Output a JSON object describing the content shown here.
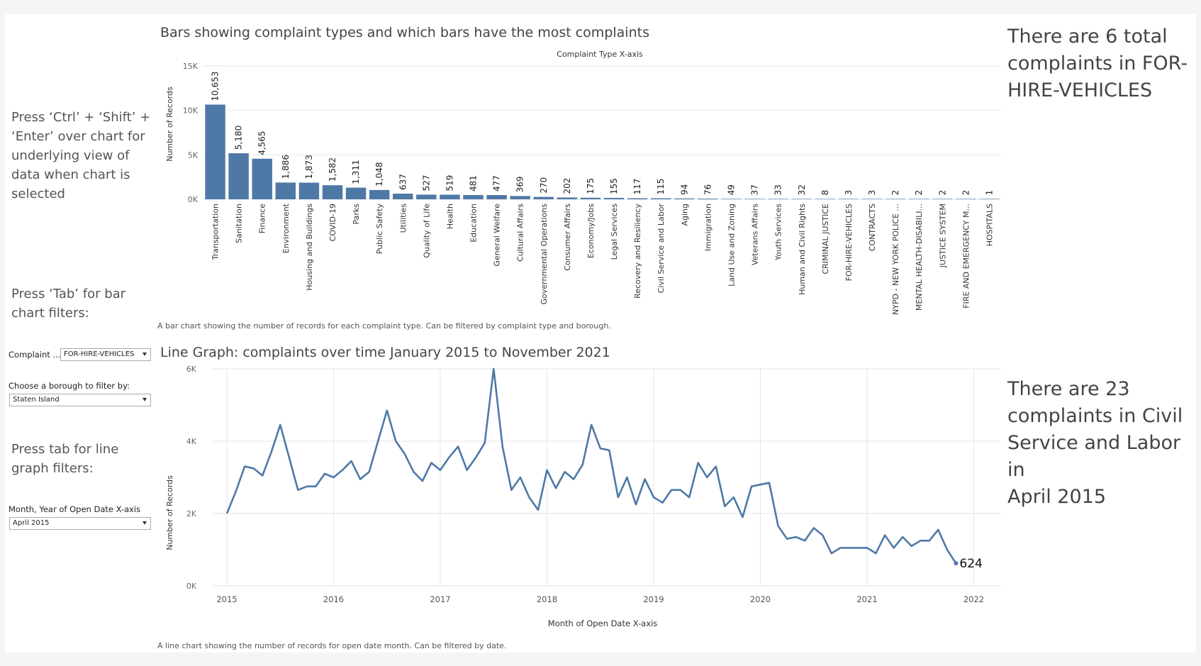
{
  "left_panel": {
    "underlying_note": [
      "Press ‘Ctrl’ + ‘Shift’ +",
      "‘Enter’ over chart for",
      "underlying view of",
      "data when chart is",
      "selected"
    ],
    "bar_filter_note": [
      "Press ‘Tab’ for bar",
      "chart filters:"
    ],
    "line_filter_note": [
      "Press tab for line",
      "graph filters:"
    ]
  },
  "filters": {
    "complaint_label": "Complaint ...",
    "complaint_value": "FOR-HIRE-VEHICLES",
    "borough_label": "Choose a borough to filter by:",
    "borough_value": "Staten Island",
    "month_label": "Month, Year of Open Date X-axis",
    "month_value": "April 2015"
  },
  "right_panel": {
    "bar_summary": [
      "There are 6 total",
      "complaints in FOR-",
      "HIRE-VEHICLES"
    ],
    "line_summary": [
      "There are 23",
      "complaints in Civil",
      "Service and Labor in",
      "April 2015"
    ]
  },
  "bar_section": {
    "title": "Bars showing complaint types and which bars have the most complaints",
    "caption": "A bar chart showing the number of records for each complaint type. Can be filtered by complaint type and borough."
  },
  "line_section": {
    "title": "Line Graph: complaints over time January 2015 to November 2021",
    "caption": "A line chart showing the number of records for open date month. Can be filtered by date."
  },
  "colors": {
    "bar": "#4e79a7",
    "line": "#4e79a7",
    "grid": "#e6e6e6"
  },
  "chart_data": [
    {
      "type": "bar",
      "title": "Complaint Type X-axis",
      "xlabel": "",
      "ylabel": "Number of Records",
      "ylim": [
        0,
        15000
      ],
      "yticks": [
        "0K",
        "5K",
        "10K",
        "15K"
      ],
      "categories": [
        "Transportation",
        "Sanitation",
        "Finance",
        "Environment",
        "Housing and Buildings",
        "COVID-19",
        "Parks",
        "Public Safety",
        "Utilities",
        "Quality of Life",
        "Health",
        "Education",
        "General Welfare",
        "Cultural Affairs",
        "Governmental Operations",
        "Consumer Affairs",
        "Economy/Jobs",
        "Legal Services",
        "Recovery and Resiliency",
        "Civil Service and Labor",
        "Aging",
        "Immigration",
        "Land Use and Zoning",
        "Veterans Affairs",
        "Youth Services",
        "Human and Civil Rights",
        "CRIMINAL JUSTICE",
        "FOR-HIRE-VEHICLES",
        "CONTRACTS",
        "NYPD - NEW YORK POLICE ...",
        "MENTAL HEALTH-DISABILI...",
        "JUSTICE SYSTEM",
        "FIRE AND EMERGENCY M...",
        "HOSPITALS"
      ],
      "values": [
        10653,
        5180,
        4565,
        1886,
        1873,
        1582,
        1311,
        1048,
        637,
        527,
        519,
        481,
        477,
        369,
        270,
        202,
        175,
        155,
        117,
        115,
        94,
        76,
        49,
        37,
        33,
        32,
        8,
        3,
        3,
        2,
        2,
        2,
        2,
        1
      ],
      "value_labels": [
        "10,653",
        "5,180",
        "4,565",
        "1,886",
        "1,873",
        "1,582",
        "1,311",
        "1,048",
        "637",
        "527",
        "519",
        "481",
        "477",
        "369",
        "270",
        "202",
        "175",
        "155",
        "117",
        "115",
        "94",
        "76",
        "49",
        "37",
        "33",
        "32",
        "8",
        "3",
        "3",
        "2",
        "2",
        "2",
        "2",
        "1"
      ]
    },
    {
      "type": "line",
      "xlabel": "Month of Open Date X-axis",
      "ylabel": "Number of Records",
      "xlim": [
        "2015-01",
        "2022-01"
      ],
      "ylim": [
        0,
        6000
      ],
      "yticks": [
        "0K",
        "2K",
        "4K",
        "6K"
      ],
      "xticks": [
        "2015",
        "2016",
        "2017",
        "2018",
        "2019",
        "2020",
        "2021",
        "2022"
      ],
      "x": [
        "2015-01",
        "2015-02",
        "2015-03",
        "2015-04",
        "2015-05",
        "2015-06",
        "2015-07",
        "2015-08",
        "2015-09",
        "2015-10",
        "2015-11",
        "2015-12",
        "2016-01",
        "2016-02",
        "2016-03",
        "2016-04",
        "2016-05",
        "2016-06",
        "2016-07",
        "2016-08",
        "2016-09",
        "2016-10",
        "2016-11",
        "2016-12",
        "2017-01",
        "2017-02",
        "2017-03",
        "2017-04",
        "2017-05",
        "2017-06",
        "2017-07",
        "2017-08",
        "2017-09",
        "2017-10",
        "2017-11",
        "2017-12",
        "2018-01",
        "2018-02",
        "2018-03",
        "2018-04",
        "2018-05",
        "2018-06",
        "2018-07",
        "2018-08",
        "2018-09",
        "2018-10",
        "2018-11",
        "2018-12",
        "2019-01",
        "2019-02",
        "2019-03",
        "2019-04",
        "2019-05",
        "2019-06",
        "2019-07",
        "2019-08",
        "2019-09",
        "2019-10",
        "2019-11",
        "2019-12",
        "2020-01",
        "2020-02",
        "2020-03",
        "2020-04",
        "2020-05",
        "2020-06",
        "2020-07",
        "2020-08",
        "2020-09",
        "2020-10",
        "2020-11",
        "2020-12",
        "2021-01",
        "2021-02",
        "2021-03",
        "2021-04",
        "2021-05",
        "2021-06",
        "2021-07",
        "2021-08",
        "2021-09",
        "2021-10",
        "2021-11"
      ],
      "values": [
        2000,
        2600,
        3300,
        3250,
        3050,
        3700,
        4450,
        3550,
        2650,
        2750,
        2750,
        3100,
        3000,
        3200,
        3450,
        2950,
        3150,
        4000,
        4850,
        4000,
        3650,
        3150,
        2900,
        3400,
        3200,
        3550,
        3850,
        3200,
        3550,
        3950,
        6000,
        3850,
        2650,
        3000,
        2450,
        2100,
        3200,
        2700,
        3150,
        2950,
        3350,
        4450,
        3800,
        3750,
        2450,
        3000,
        2250,
        2950,
        2450,
        2300,
        2650,
        2650,
        2450,
        3400,
        3000,
        3300,
        2200,
        2450,
        1900,
        2750,
        2800,
        2850,
        1650,
        1300,
        1350,
        1250,
        1600,
        1400,
        900,
        1050,
        1050,
        1050,
        1050,
        900,
        1400,
        1050,
        1350,
        1100,
        1250,
        1250,
        1550,
        1000,
        624
      ],
      "end_label": "624"
    }
  ]
}
